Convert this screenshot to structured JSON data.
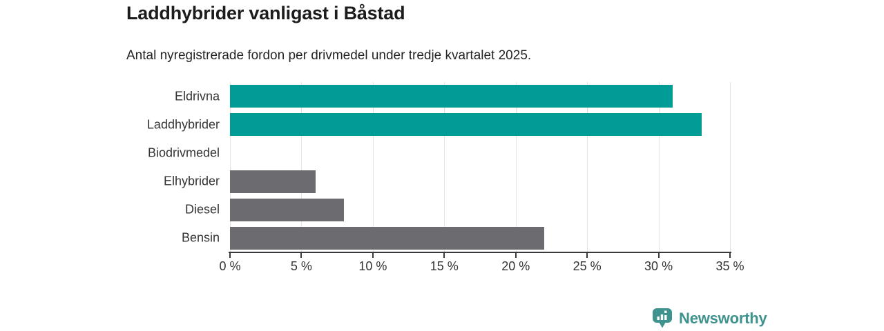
{
  "header": {
    "title": "Laddhybrider vanligast i Båstad",
    "subtitle": "Antal nyregistrerade fordon per drivmedel under tredje kvartalet 2025."
  },
  "chart_data": {
    "type": "bar",
    "orientation": "horizontal",
    "categories": [
      "Eldrivna",
      "Laddhybrider",
      "Biodrivmedel",
      "Elhybrider",
      "Diesel",
      "Bensin"
    ],
    "values": [
      31,
      33,
      0,
      6,
      8,
      22
    ],
    "unit": "%",
    "xlim": [
      0,
      35
    ],
    "xticks": [
      0,
      5,
      10,
      15,
      20,
      25,
      30,
      35
    ],
    "xtick_labels": [
      "0 %",
      "5 %",
      "10 %",
      "15 %",
      "20 %",
      "25 %",
      "30 %",
      "35 %"
    ],
    "bar_colors": [
      "#009C95",
      "#009C95",
      "#6B6B70",
      "#6B6B70",
      "#6B6B70",
      "#6B6B70"
    ],
    "highlight_color": "#009C95",
    "default_color": "#6B6B70",
    "grid": true,
    "gridline_color": "#e3e3e3",
    "axis_color": "#3a3a3c",
    "title": "Laddhybrider vanligast i Båstad",
    "xlabel": "",
    "ylabel": ""
  },
  "branding": {
    "logo_text": "Newsworthy",
    "logo_color": "#3F938E"
  }
}
